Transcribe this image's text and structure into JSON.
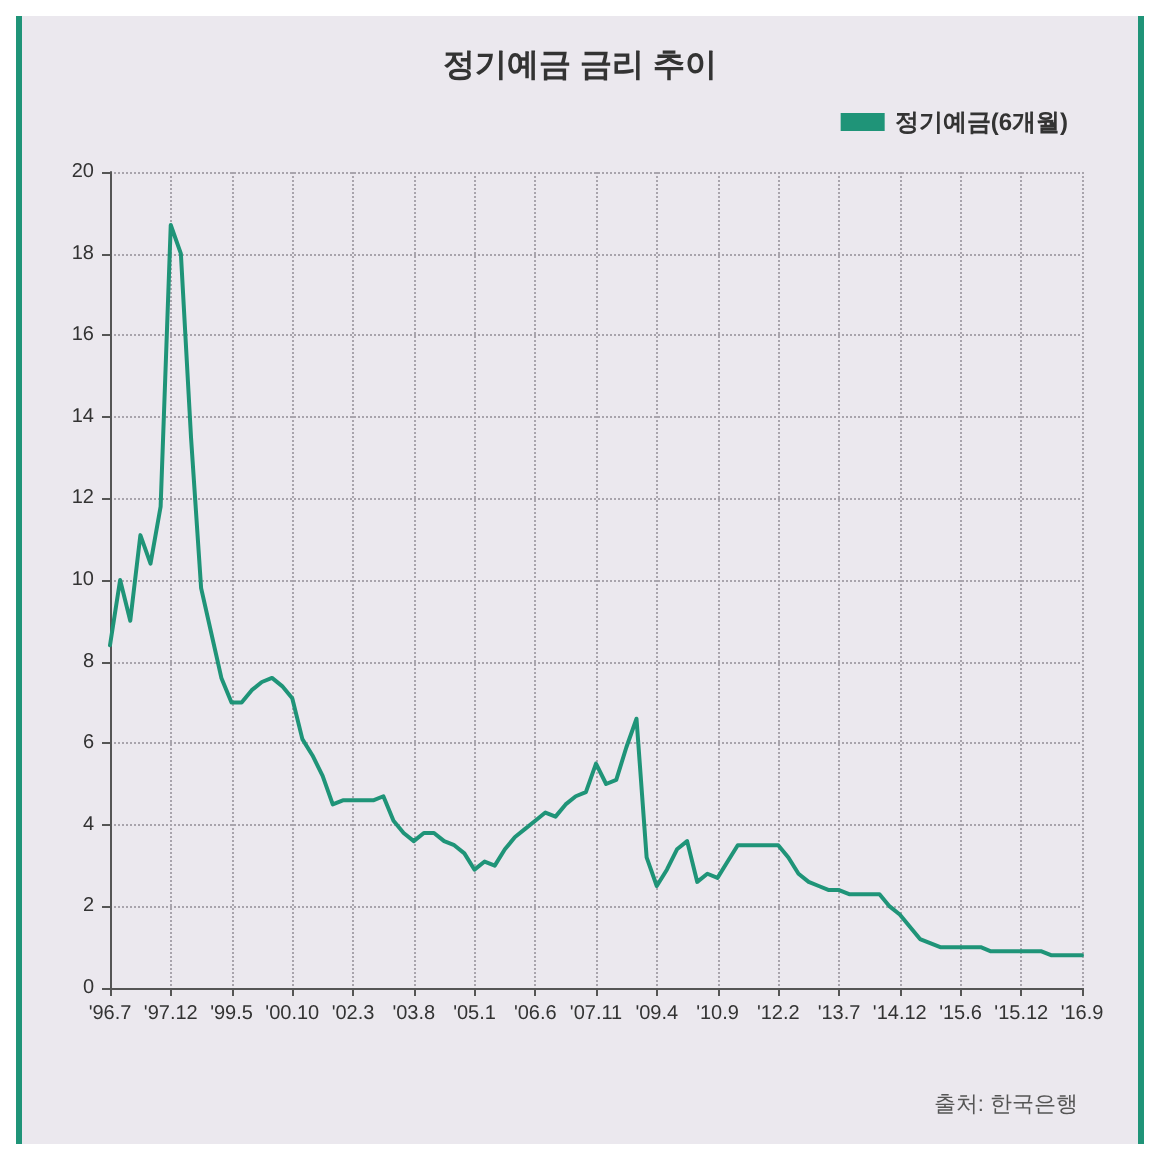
{
  "chart_data": {
    "type": "line",
    "title": "정기예금 금리 추이",
    "categories": [
      "'96.7",
      null,
      null,
      null,
      null,
      null,
      "'97.12",
      null,
      null,
      null,
      null,
      null,
      "'99.5",
      null,
      null,
      null,
      null,
      null,
      "'00.10",
      null,
      null,
      null,
      null,
      null,
      "'02.3",
      null,
      null,
      null,
      null,
      null,
      "'03.8",
      null,
      null,
      null,
      null,
      null,
      "'05.1",
      null,
      null,
      null,
      null,
      null,
      "'06.6",
      null,
      null,
      null,
      null,
      null,
      "'07.11",
      null,
      null,
      null,
      null,
      null,
      "'09.4",
      null,
      null,
      null,
      null,
      null,
      "'10.9",
      null,
      null,
      null,
      null,
      null,
      "'12.2",
      null,
      null,
      null,
      null,
      null,
      "'13.7",
      null,
      null,
      null,
      null,
      null,
      "'14.12",
      null,
      null,
      null,
      null,
      null,
      "'15.6",
      null,
      null,
      null,
      null,
      null,
      "'15.12",
      null,
      null,
      null,
      null,
      null,
      "'16.9"
    ],
    "series": [
      {
        "name": "정기예금(6개월)",
        "color": "#1f9478",
        "values": [
          8.4,
          10.0,
          9.0,
          11.1,
          10.4,
          11.8,
          18.7,
          18.0,
          13.5,
          9.8,
          8.7,
          7.6,
          7.0,
          7.0,
          7.3,
          7.5,
          7.6,
          7.4,
          7.1,
          6.1,
          5.7,
          5.2,
          4.5,
          4.6,
          4.6,
          4.6,
          4.6,
          4.7,
          4.1,
          3.8,
          3.6,
          3.8,
          3.8,
          3.6,
          3.5,
          3.3,
          2.9,
          3.1,
          3.0,
          3.4,
          3.7,
          3.9,
          4.1,
          4.3,
          4.2,
          4.5,
          4.7,
          4.8,
          5.5,
          5.0,
          5.1,
          5.9,
          6.6,
          3.2,
          2.5,
          2.9,
          3.4,
          3.6,
          2.6,
          2.8,
          2.7,
          3.1,
          3.5,
          3.5,
          3.5,
          3.5,
          3.5,
          3.2,
          2.8,
          2.6,
          2.5,
          2.4,
          2.4,
          2.3,
          2.3,
          2.3,
          2.3,
          2.0,
          1.8,
          1.5,
          1.2,
          1.1,
          1.0,
          1.0,
          1.0,
          1.0,
          1.0,
          0.9,
          0.9,
          0.9,
          0.9,
          0.9,
          0.9,
          0.8,
          0.8,
          0.8,
          0.8
        ]
      }
    ],
    "ylim": [
      0,
      20
    ],
    "yticks": [
      0,
      2,
      4,
      6,
      8,
      10,
      12,
      14,
      16,
      18,
      20
    ],
    "grid": true,
    "legend": "top right",
    "annotations": [
      "출처: 한국은행"
    ]
  }
}
